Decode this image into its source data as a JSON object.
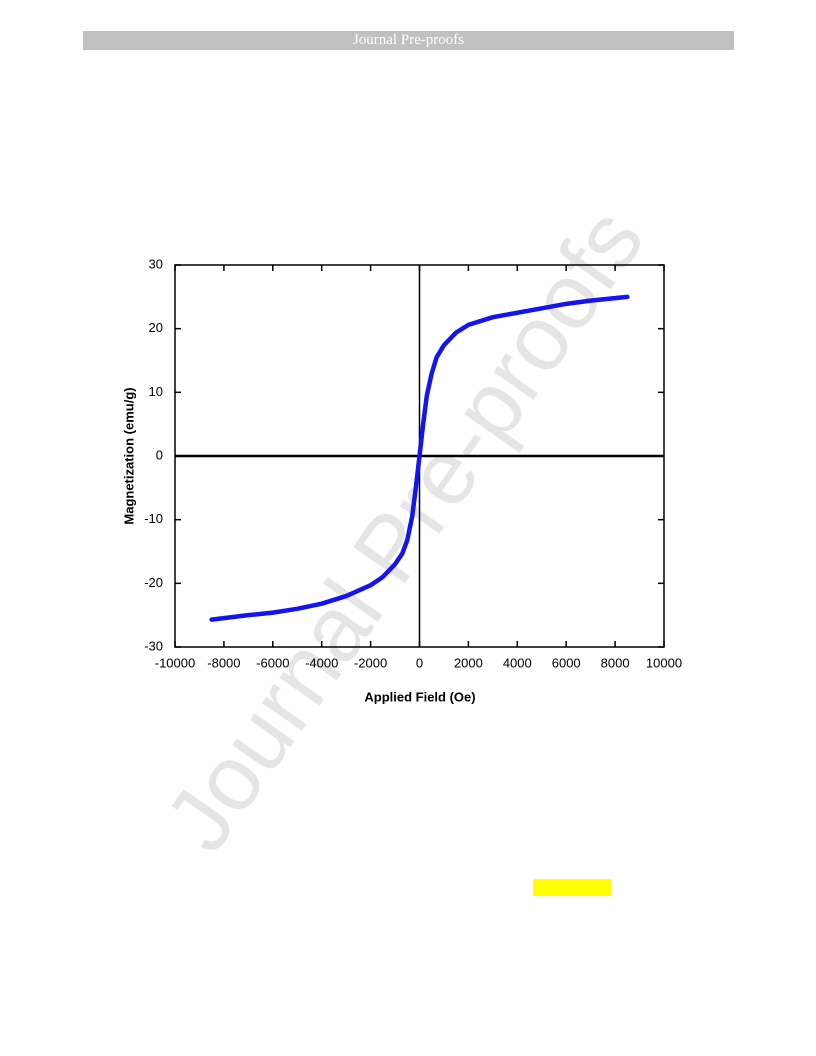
{
  "header": {
    "title": "Journal Pre-proofs"
  },
  "watermark": "Journal Pre-proofs",
  "chart_data": {
    "type": "line",
    "x_label": "Applied Field (Oe)",
    "y_label": "Magnetization (emu/g)",
    "x": [
      -8500,
      -7000,
      -6000,
      -5000,
      -4000,
      -3000,
      -2000,
      -1500,
      -1000,
      -700,
      -500,
      -300,
      -150,
      0,
      150,
      300,
      500,
      700,
      1000,
      1500,
      2000,
      3000,
      4000,
      5000,
      6000,
      7000,
      8500
    ],
    "series": [
      {
        "color": "#1414f0",
        "values": [
          -25.7,
          -25.0,
          -24.6,
          -24.0,
          -23.2,
          -22.0,
          -20.3,
          -19.0,
          -17.0,
          -15.3,
          -13.2,
          -9.5,
          -5.0,
          0,
          5.0,
          9.5,
          13.0,
          15.5,
          17.4,
          19.4,
          20.6,
          21.8,
          22.5,
          23.2,
          23.9,
          24.4,
          25.0
        ]
      }
    ],
    "xlim": [
      -10000,
      10000
    ],
    "ylim": [
      -30,
      30
    ],
    "xticks": [
      -10000,
      -8000,
      -6000,
      -4000,
      -2000,
      0,
      2000,
      4000,
      6000,
      8000,
      10000
    ],
    "yticks": [
      -30,
      -20,
      -10,
      0,
      10,
      20,
      30
    ],
    "zero_lines": true
  }
}
